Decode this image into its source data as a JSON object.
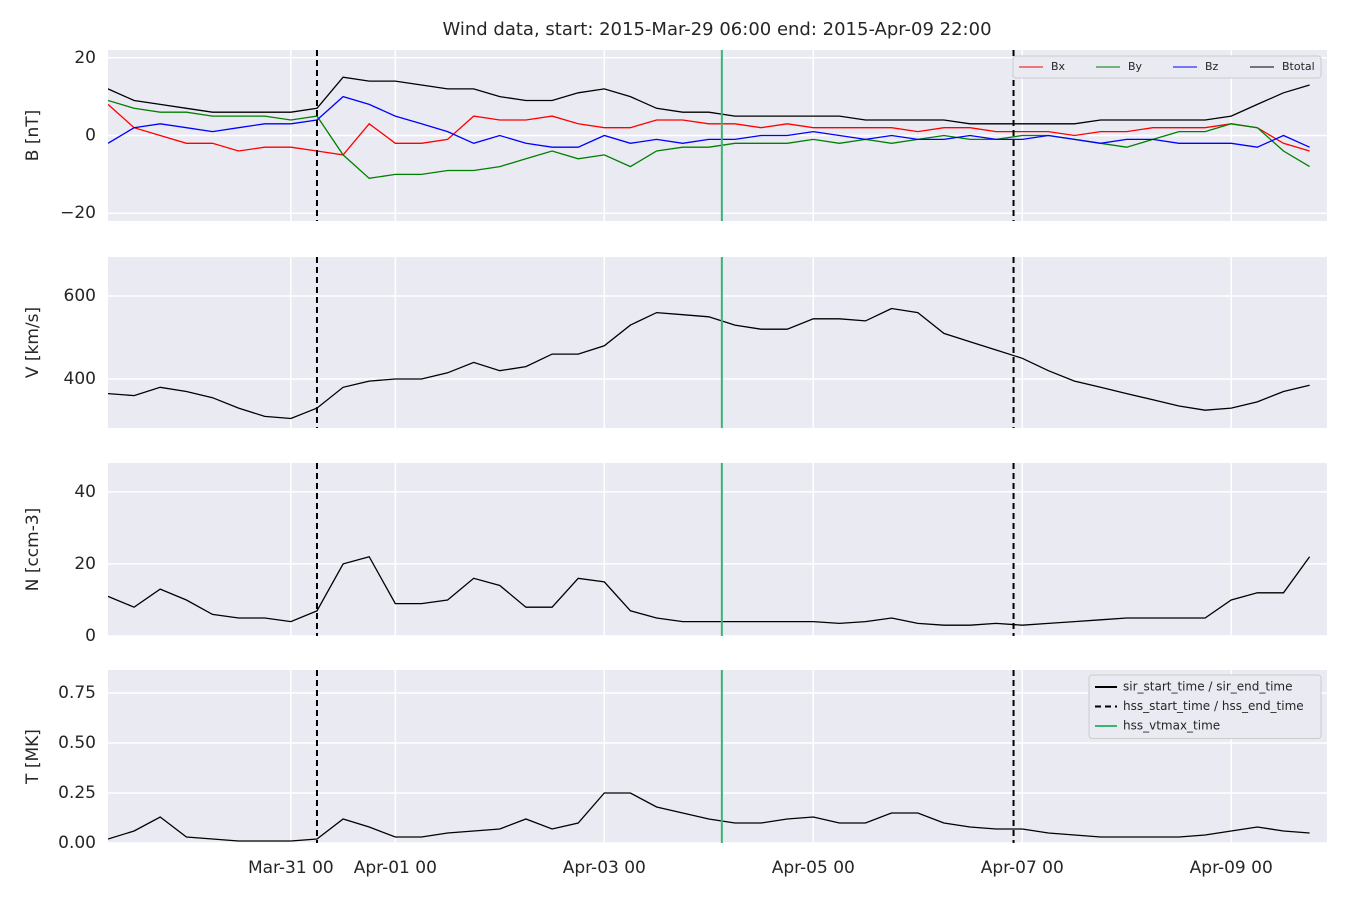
{
  "chart_data": [
    {
      "type": "line",
      "title": "Wind data, start: 2015-Mar-29 06:00  end: 2015-Apr-09 22:00",
      "ylabel": "B [nT]",
      "xlim": [
        "2015-03-29T06:00",
        "2015-04-09T22:00"
      ],
      "xticks": [
        {
          "value": "2015-03-31T00:00",
          "label": "Mar-31 00"
        },
        {
          "value": "2015-04-01T00:00",
          "label": "Apr-01 00"
        },
        {
          "value": "2015-04-03T00:00",
          "label": "Apr-03 00"
        },
        {
          "value": "2015-04-05T00:00",
          "label": "Apr-05 00"
        },
        {
          "value": "2015-04-07T00:00",
          "label": "Apr-07 00"
        },
        {
          "value": "2015-04-09T00:00",
          "label": "Apr-09 00"
        }
      ],
      "ylim": [
        -22,
        22
      ],
      "yticks": [
        {
          "value": -20,
          "label": "−20"
        },
        0,
        20
      ],
      "grid": true,
      "legend": "upper right",
      "x": [
        "2015-03-29T06:00",
        "2015-03-29T12:00",
        "2015-03-29T18:00",
        "2015-03-30T00:00",
        "2015-03-30T06:00",
        "2015-03-30T12:00",
        "2015-03-30T18:00",
        "2015-03-31T00:00",
        "2015-03-31T06:00",
        "2015-03-31T12:00",
        "2015-03-31T18:00",
        "2015-04-01T00:00",
        "2015-04-01T06:00",
        "2015-04-01T12:00",
        "2015-04-01T18:00",
        "2015-04-02T00:00",
        "2015-04-02T06:00",
        "2015-04-02T12:00",
        "2015-04-02T18:00",
        "2015-04-03T00:00",
        "2015-04-03T06:00",
        "2015-04-03T12:00",
        "2015-04-03T18:00",
        "2015-04-04T00:00",
        "2015-04-04T06:00",
        "2015-04-04T12:00",
        "2015-04-04T18:00",
        "2015-04-05T00:00",
        "2015-04-05T06:00",
        "2015-04-05T12:00",
        "2015-04-05T18:00",
        "2015-04-06T00:00",
        "2015-04-06T06:00",
        "2015-04-06T12:00",
        "2015-04-06T18:00",
        "2015-04-07T00:00",
        "2015-04-07T06:00",
        "2015-04-07T12:00",
        "2015-04-07T18:00",
        "2015-04-08T00:00",
        "2015-04-08T06:00",
        "2015-04-08T12:00",
        "2015-04-08T18:00",
        "2015-04-09T00:00",
        "2015-04-09T06:00",
        "2015-04-09T12:00",
        "2015-04-09T18:00"
      ],
      "series": [
        {
          "name": "Bx",
          "color": "#ff0000",
          "values": [
            8,
            2,
            0,
            -2,
            -2,
            -4,
            -3,
            -3,
            -4,
            -5,
            3,
            -2,
            -2,
            -1,
            5,
            4,
            4,
            5,
            3,
            2,
            2,
            4,
            4,
            3,
            3,
            2,
            3,
            2,
            2,
            2,
            2,
            1,
            2,
            2,
            1,
            1,
            1,
            0,
            1,
            1,
            2,
            2,
            2,
            3,
            2,
            -2,
            -4
          ]
        },
        {
          "name": "By",
          "color": "#008000",
          "values": [
            9,
            7,
            6,
            6,
            5,
            5,
            5,
            4,
            5,
            -5,
            -11,
            -10,
            -10,
            -9,
            -9,
            -8,
            -6,
            -4,
            -6,
            -5,
            -8,
            -4,
            -3,
            -3,
            -2,
            -2,
            -2,
            -1,
            -2,
            -1,
            -2,
            -1,
            0,
            -1,
            -1,
            0,
            0,
            -1,
            -2,
            -3,
            -1,
            1,
            1,
            3,
            2,
            -4,
            -8
          ]
        },
        {
          "name": "Bz",
          "color": "#0000ff",
          "values": [
            -2,
            2,
            3,
            2,
            1,
            2,
            3,
            3,
            4,
            10,
            8,
            5,
            3,
            1,
            -2,
            0,
            -2,
            -3,
            -3,
            0,
            -2,
            -1,
            -2,
            -1,
            -1,
            0,
            0,
            1,
            0,
            -1,
            0,
            -1,
            -1,
            0,
            -1,
            -1,
            0,
            -1,
            -2,
            -1,
            -1,
            -2,
            -2,
            -2,
            -3,
            0,
            -3
          ]
        },
        {
          "name": "Btotal",
          "color": "#000000",
          "values": [
            12,
            9,
            8,
            7,
            6,
            6,
            6,
            6,
            7,
            15,
            14,
            14,
            13,
            12,
            12,
            10,
            9,
            9,
            11,
            12,
            10,
            7,
            6,
            6,
            5,
            5,
            5,
            5,
            5,
            4,
            4,
            4,
            4,
            3,
            3,
            3,
            3,
            3,
            4,
            4,
            4,
            4,
            4,
            5,
            8,
            11,
            13
          ]
        }
      ]
    },
    {
      "type": "line",
      "ylabel": "V [km/s]",
      "xlim": [
        "2015-03-29T06:00",
        "2015-04-09T22:00"
      ],
      "xticks": [
        {
          "value": "2015-03-31T00:00",
          "label": "Mar-31 00"
        },
        {
          "value": "2015-04-01T00:00",
          "label": "Apr-01 00"
        },
        {
          "value": "2015-04-03T00:00",
          "label": "Apr-03 00"
        },
        {
          "value": "2015-04-05T00:00",
          "label": "Apr-05 00"
        },
        {
          "value": "2015-04-07T00:00",
          "label": "Apr-07 00"
        },
        {
          "value": "2015-04-09T00:00",
          "label": "Apr-09 00"
        }
      ],
      "ylim": [
        282,
        694
      ],
      "yticks": [
        400,
        600
      ],
      "grid": true,
      "x": [
        "2015-03-29T06:00",
        "2015-03-29T12:00",
        "2015-03-29T18:00",
        "2015-03-30T00:00",
        "2015-03-30T06:00",
        "2015-03-30T12:00",
        "2015-03-30T18:00",
        "2015-03-31T00:00",
        "2015-03-31T06:00",
        "2015-03-31T12:00",
        "2015-03-31T18:00",
        "2015-04-01T00:00",
        "2015-04-01T06:00",
        "2015-04-01T12:00",
        "2015-04-01T18:00",
        "2015-04-02T00:00",
        "2015-04-02T06:00",
        "2015-04-02T12:00",
        "2015-04-02T18:00",
        "2015-04-03T00:00",
        "2015-04-03T06:00",
        "2015-04-03T12:00",
        "2015-04-03T18:00",
        "2015-04-04T00:00",
        "2015-04-04T06:00",
        "2015-04-04T12:00",
        "2015-04-04T18:00",
        "2015-04-05T00:00",
        "2015-04-05T06:00",
        "2015-04-05T12:00",
        "2015-04-05T18:00",
        "2015-04-06T00:00",
        "2015-04-06T06:00",
        "2015-04-06T12:00",
        "2015-04-06T18:00",
        "2015-04-07T00:00",
        "2015-04-07T06:00",
        "2015-04-07T12:00",
        "2015-04-07T18:00",
        "2015-04-08T00:00",
        "2015-04-08T06:00",
        "2015-04-08T12:00",
        "2015-04-08T18:00",
        "2015-04-09T00:00",
        "2015-04-09T06:00",
        "2015-04-09T12:00",
        "2015-04-09T18:00"
      ],
      "series": [
        {
          "color": "#000000",
          "values": [
            365,
            360,
            380,
            370,
            355,
            330,
            310,
            305,
            330,
            380,
            395,
            400,
            400,
            415,
            440,
            420,
            430,
            460,
            460,
            480,
            530,
            560,
            555,
            550,
            530,
            520,
            520,
            545,
            545,
            540,
            570,
            560,
            510,
            490,
            470,
            450,
            420,
            395,
            380,
            365,
            350,
            335,
            325,
            330,
            345,
            370,
            385
          ]
        }
      ]
    },
    {
      "type": "line",
      "ylabel": "N [ccm-3]",
      "xlim": [
        "2015-03-29T06:00",
        "2015-04-09T22:00"
      ],
      "xticks": [
        {
          "value": "2015-03-31T00:00",
          "label": "Mar-31 00"
        },
        {
          "value": "2015-04-01T00:00",
          "label": "Apr-01 00"
        },
        {
          "value": "2015-04-03T00:00",
          "label": "Apr-03 00"
        },
        {
          "value": "2015-04-05T00:00",
          "label": "Apr-05 00"
        },
        {
          "value": "2015-04-07T00:00",
          "label": "Apr-07 00"
        },
        {
          "value": "2015-04-09T00:00",
          "label": "Apr-09 00"
        }
      ],
      "ylim": [
        0,
        48
      ],
      "yticks": [
        0,
        20,
        40
      ],
      "grid": true,
      "x": [
        "2015-03-29T06:00",
        "2015-03-29T12:00",
        "2015-03-29T18:00",
        "2015-03-30T00:00",
        "2015-03-30T06:00",
        "2015-03-30T12:00",
        "2015-03-30T18:00",
        "2015-03-31T00:00",
        "2015-03-31T06:00",
        "2015-03-31T12:00",
        "2015-03-31T18:00",
        "2015-04-01T00:00",
        "2015-04-01T06:00",
        "2015-04-01T12:00",
        "2015-04-01T18:00",
        "2015-04-02T00:00",
        "2015-04-02T06:00",
        "2015-04-02T12:00",
        "2015-04-02T18:00",
        "2015-04-03T00:00",
        "2015-04-03T06:00",
        "2015-04-03T12:00",
        "2015-04-03T18:00",
        "2015-04-04T00:00",
        "2015-04-04T06:00",
        "2015-04-04T12:00",
        "2015-04-04T18:00",
        "2015-04-05T00:00",
        "2015-04-05T06:00",
        "2015-04-05T12:00",
        "2015-04-05T18:00",
        "2015-04-06T00:00",
        "2015-04-06T06:00",
        "2015-04-06T12:00",
        "2015-04-06T18:00",
        "2015-04-07T00:00",
        "2015-04-07T06:00",
        "2015-04-07T12:00",
        "2015-04-07T18:00",
        "2015-04-08T00:00",
        "2015-04-08T06:00",
        "2015-04-08T12:00",
        "2015-04-08T18:00",
        "2015-04-09T00:00",
        "2015-04-09T06:00",
        "2015-04-09T12:00",
        "2015-04-09T18:00"
      ],
      "series": [
        {
          "color": "#000000",
          "values": [
            11,
            8,
            13,
            10,
            6,
            5,
            5,
            4,
            7,
            20,
            22,
            9,
            9,
            10,
            16,
            14,
            8,
            8,
            16,
            15,
            7,
            5,
            4,
            4,
            4,
            4,
            4,
            4,
            3.5,
            4,
            5,
            3.5,
            3,
            3,
            3.5,
            3,
            3.5,
            4,
            4.5,
            5,
            5,
            5,
            5,
            10,
            12,
            12,
            22
          ]
        }
      ]
    },
    {
      "type": "line",
      "ylabel": "T [MK]",
      "xlim": [
        "2015-03-29T06:00",
        "2015-04-09T22:00"
      ],
      "xticks": [
        {
          "value": "2015-03-31T00:00",
          "label": "Mar-31 00"
        },
        {
          "value": "2015-04-01T00:00",
          "label": "Apr-01 00"
        },
        {
          "value": "2015-04-03T00:00",
          "label": "Apr-03 00"
        },
        {
          "value": "2015-04-05T00:00",
          "label": "Apr-05 00"
        },
        {
          "value": "2015-04-07T00:00",
          "label": "Apr-07 00"
        },
        {
          "value": "2015-04-09T00:00",
          "label": "Apr-09 00"
        }
      ],
      "ylim": [
        0,
        0.865
      ],
      "yticks": [
        {
          "value": 0,
          "label": "0.00"
        },
        {
          "value": 0.25,
          "label": "0.25"
        },
        {
          "value": 0.5,
          "label": "0.50"
        },
        {
          "value": 0.75,
          "label": "0.75"
        }
      ],
      "grid": true,
      "x": [
        "2015-03-29T06:00",
        "2015-03-29T12:00",
        "2015-03-29T18:00",
        "2015-03-30T00:00",
        "2015-03-30T06:00",
        "2015-03-30T12:00",
        "2015-03-30T18:00",
        "2015-03-31T00:00",
        "2015-03-31T06:00",
        "2015-03-31T12:00",
        "2015-03-31T18:00",
        "2015-04-01T00:00",
        "2015-04-01T06:00",
        "2015-04-01T12:00",
        "2015-04-01T18:00",
        "2015-04-02T00:00",
        "2015-04-02T06:00",
        "2015-04-02T12:00",
        "2015-04-02T18:00",
        "2015-04-03T00:00",
        "2015-04-03T06:00",
        "2015-04-03T12:00",
        "2015-04-03T18:00",
        "2015-04-04T00:00",
        "2015-04-04T06:00",
        "2015-04-04T12:00",
        "2015-04-04T18:00",
        "2015-04-05T00:00",
        "2015-04-05T06:00",
        "2015-04-05T12:00",
        "2015-04-05T18:00",
        "2015-04-06T00:00",
        "2015-04-06T06:00",
        "2015-04-06T12:00",
        "2015-04-06T18:00",
        "2015-04-07T00:00",
        "2015-04-07T06:00",
        "2015-04-07T12:00",
        "2015-04-07T18:00",
        "2015-04-08T00:00",
        "2015-04-08T06:00",
        "2015-04-08T12:00",
        "2015-04-08T18:00",
        "2015-04-09T00:00",
        "2015-04-09T06:00",
        "2015-04-09T12:00",
        "2015-04-09T18:00"
      ],
      "series": [
        {
          "color": "#000000",
          "values": [
            0.02,
            0.06,
            0.13,
            0.03,
            0.02,
            0.01,
            0.01,
            0.01,
            0.02,
            0.12,
            0.08,
            0.03,
            0.03,
            0.05,
            0.06,
            0.07,
            0.12,
            0.07,
            0.1,
            0.25,
            0.25,
            0.18,
            0.15,
            0.12,
            0.1,
            0.1,
            0.12,
            0.13,
            0.1,
            0.1,
            0.15,
            0.15,
            0.1,
            0.08,
            0.07,
            0.07,
            0.05,
            0.04,
            0.03,
            0.03,
            0.03,
            0.03,
            0.04,
            0.06,
            0.08,
            0.06,
            0.05
          ]
        }
      ]
    }
  ],
  "events": {
    "legend": [
      {
        "label": "sir_start_time / sir_end_time",
        "color": "#000000",
        "style": "solid"
      },
      {
        "label": "hss_start_time / hss_end_time",
        "color": "#000000",
        "style": "dashed"
      },
      {
        "label": "hss_vtmax_time",
        "color": "#3cb371",
        "style": "solid"
      }
    ],
    "lines": [
      {
        "x": "2015-03-31T06:00",
        "color": "#000000",
        "style": "dashed"
      },
      {
        "x": "2015-04-06T22:00",
        "color": "#000000",
        "style": "dashed"
      },
      {
        "x": "2015-04-04T03:00",
        "color": "#3cb371",
        "style": "solid"
      }
    ]
  }
}
